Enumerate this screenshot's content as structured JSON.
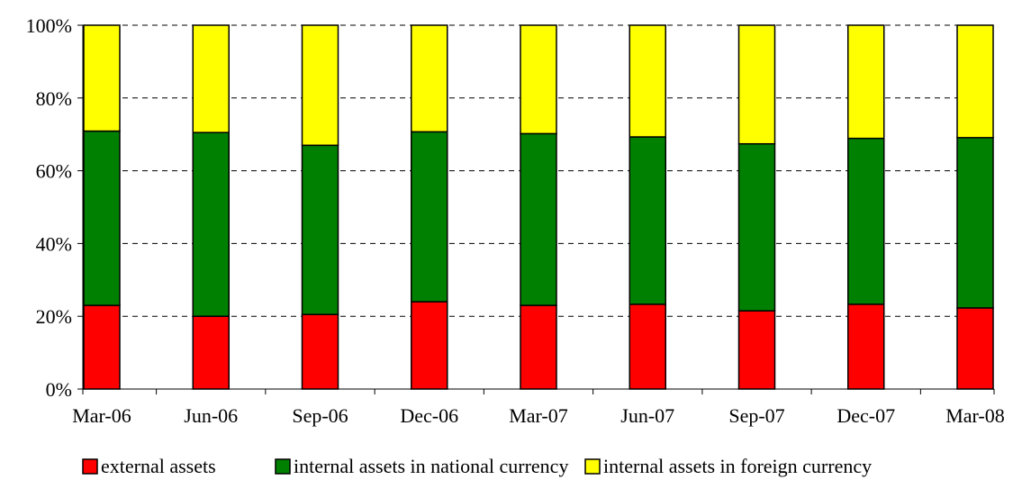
{
  "chart_data": {
    "type": "bar",
    "stacked": true,
    "percent": true,
    "title": "",
    "xlabel": "",
    "ylabel": "",
    "categories": [
      "Mar-06",
      "Jun-06",
      "Sep-06",
      "Dec-06",
      "Mar-07",
      "Jun-07",
      "Sep-07",
      "Dec-07",
      "Mar-08"
    ],
    "ylim": [
      0,
      100
    ],
    "yticks": [
      0,
      20,
      40,
      60,
      80,
      100
    ],
    "ytick_labels": [
      "0%",
      "20%",
      "40%",
      "60%",
      "80%",
      "100%"
    ],
    "grid": true,
    "legend_position": "bottom",
    "series": [
      {
        "name": "external assets",
        "color": "#ff0000",
        "values": [
          23,
          20,
          20.5,
          24,
          23,
          23.3,
          21.5,
          23.3,
          22.3
        ]
      },
      {
        "name": "internal assets in national currency",
        "color": "#008000",
        "values": [
          47.9,
          50.5,
          46.5,
          46.7,
          47.2,
          46,
          45.9,
          45.6,
          46.8
        ]
      },
      {
        "name": "internal assets in foreign currency",
        "color": "#ffff00",
        "values": [
          29.1,
          29.5,
          33,
          29.3,
          29.8,
          30.7,
          32.6,
          31.1,
          30.9
        ]
      }
    ]
  }
}
